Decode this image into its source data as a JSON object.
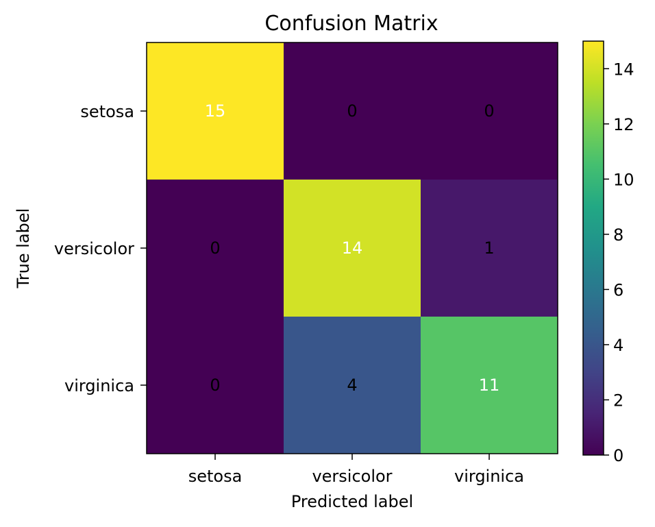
{
  "chart_data": {
    "type": "heatmap",
    "title": "Confusion Matrix",
    "xlabel": "Predicted label",
    "ylabel": "True label",
    "x_categories": [
      "setosa",
      "versicolor",
      "virginica"
    ],
    "y_categories": [
      "setosa",
      "versicolor",
      "virginica"
    ],
    "values": [
      [
        15,
        0,
        0
      ],
      [
        0,
        14,
        1
      ],
      [
        0,
        4,
        11
      ]
    ],
    "colormap": "viridis",
    "colorbar": {
      "range": [
        0,
        15
      ],
      "ticks": [
        0,
        2,
        4,
        6,
        8,
        10,
        12,
        14
      ]
    },
    "annotation_colors": {
      "high": "#ffffff",
      "low": "#000000"
    }
  }
}
